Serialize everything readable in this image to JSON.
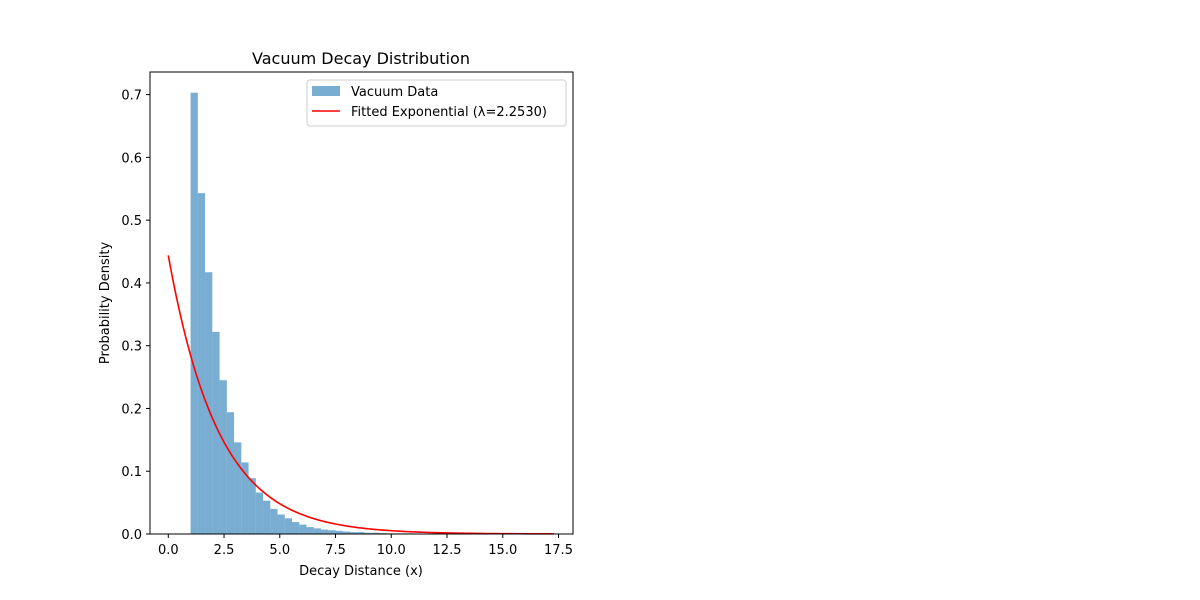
{
  "chart_data": {
    "type": "bar",
    "title": "Vacuum Decay Distribution",
    "xlabel": "Decay Distance (x)",
    "ylabel": "Probability Density",
    "xlim": [
      -0.82,
      18.15
    ],
    "ylim": [
      0,
      0.736
    ],
    "xticks": [
      "0.0",
      "2.5",
      "5.0",
      "7.5",
      "10.0",
      "12.5",
      "15.0",
      "17.5"
    ],
    "yticks": [
      "0.0",
      "0.1",
      "0.2",
      "0.3",
      "0.4",
      "0.5",
      "0.6",
      "0.7"
    ],
    "grid": false,
    "legend_position": "top-right",
    "histogram": {
      "name": "Vacuum Data",
      "color": "#1f77b4",
      "opacity": 0.6,
      "bin_width": 0.325,
      "bin_starts": [
        1.0,
        1.325,
        1.65,
        1.975,
        2.3,
        2.625,
        2.95,
        3.275,
        3.6,
        3.925,
        4.25,
        4.575,
        4.9,
        5.225,
        5.55,
        5.875,
        6.2,
        6.525,
        6.85,
        7.175,
        7.5,
        7.825,
        8.15,
        8.475,
        8.8,
        9.125,
        9.45,
        9.775,
        10.1,
        10.425,
        10.75
      ],
      "values": [
        0.703,
        0.543,
        0.417,
        0.322,
        0.245,
        0.194,
        0.146,
        0.114,
        0.089,
        0.066,
        0.053,
        0.04,
        0.031,
        0.025,
        0.019,
        0.015,
        0.011,
        0.009,
        0.007,
        0.006,
        0.005,
        0.004,
        0.003,
        0.003,
        0.002,
        0.002,
        0.0015,
        0.001,
        0.001,
        0.001,
        0.001
      ]
    },
    "fit_curve": {
      "name": "Fitted Exponential (λ=2.2530)",
      "color": "#ff0000",
      "function": "exponential_pdf",
      "lambda": 2.253,
      "x_range": [
        0,
        17.3
      ]
    }
  }
}
